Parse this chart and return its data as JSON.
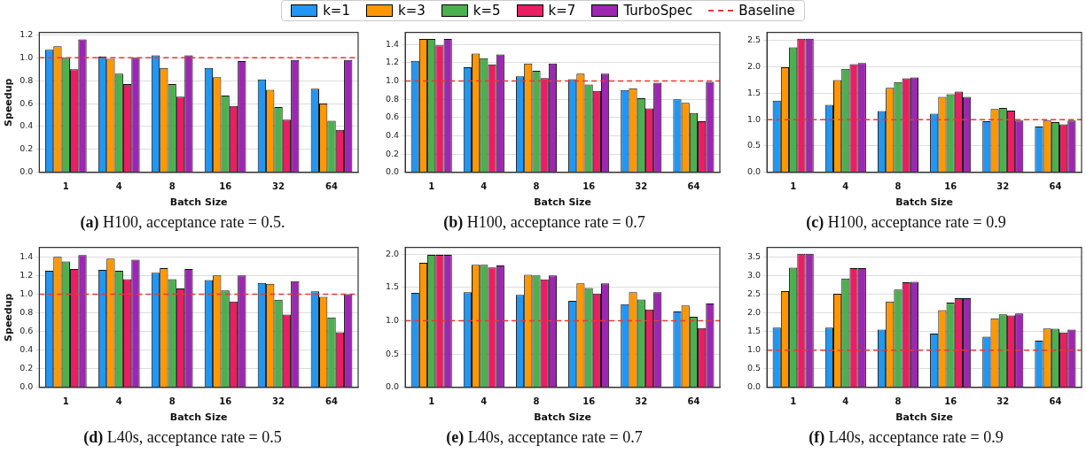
{
  "chart_data": [
    {
      "type": "bar",
      "title": "(a) H100, acceptance rate = 0.5.",
      "xlabel": "Batch Size",
      "ylabel": "Speedup",
      "categories": [
        "1",
        "4",
        "8",
        "16",
        "32",
        "64"
      ],
      "ylim": [
        0,
        1.22
      ],
      "yticks": [
        {
          "value": 0,
          "label": "0.0"
        },
        0.2,
        0.4,
        0.6,
        0.8,
        {
          "value": 1,
          "label": "1.0"
        },
        1.2
      ],
      "grid": "y",
      "legend": "top",
      "ref_lines": [
        {
          "axis": "y",
          "value": 1.0,
          "label": "Baseline",
          "color": "#e53935",
          "line_style": "dashed"
        }
      ],
      "series": [
        {
          "name": "k=1",
          "color": "#2196f3",
          "values": [
            1.07,
            1.01,
            1.02,
            0.91,
            0.81,
            0.73
          ]
        },
        {
          "name": "k=3",
          "color": "#ff9800",
          "values": [
            1.1,
            0.99,
            0.91,
            0.83,
            0.72,
            0.6
          ]
        },
        {
          "name": "k=5",
          "color": "#4caf50",
          "values": [
            1.0,
            0.86,
            0.77,
            0.67,
            0.57,
            0.45
          ]
        },
        {
          "name": "k=7",
          "color": "#e91e63",
          "values": [
            0.9,
            0.77,
            0.66,
            0.58,
            0.46,
            0.37
          ]
        },
        {
          "name": "TurboSpec",
          "color": "#9c27b0",
          "values": [
            1.16,
            1.0,
            1.02,
            0.97,
            0.98,
            0.98
          ]
        }
      ]
    },
    {
      "type": "bar",
      "title": "(b) H100, acceptance rate = 0.7",
      "xlabel": "Batch Size",
      "categories": [
        "1",
        "4",
        "8",
        "16",
        "32",
        "64"
      ],
      "ylim": [
        0,
        1.53
      ],
      "yticks": [
        {
          "value": 0,
          "label": "0.0"
        },
        0.2,
        0.4,
        0.6,
        0.8,
        {
          "value": 1,
          "label": "1.0"
        },
        1.2,
        1.4
      ],
      "grid": "y",
      "ref_lines": [
        {
          "axis": "y",
          "value": 1.0,
          "color": "#e53935",
          "line_style": "dashed"
        }
      ],
      "series": [
        {
          "color": "#2196f3",
          "values": [
            1.22,
            1.15,
            1.05,
            1.02,
            0.9,
            0.8
          ]
        },
        {
          "color": "#ff9800",
          "values": [
            1.46,
            1.3,
            1.19,
            1.08,
            0.92,
            0.76
          ]
        },
        {
          "color": "#4caf50",
          "values": [
            1.46,
            1.25,
            1.11,
            0.96,
            0.81,
            0.65
          ]
        },
        {
          "color": "#e91e63",
          "values": [
            1.39,
            1.18,
            1.03,
            0.89,
            0.7,
            0.56
          ]
        },
        {
          "color": "#9c27b0",
          "values": [
            1.46,
            1.29,
            1.19,
            1.08,
            0.98,
            0.99
          ]
        }
      ]
    },
    {
      "type": "bar",
      "title": "(c) H100, acceptance rate = 0.9",
      "xlabel": "Batch Size",
      "categories": [
        "1",
        "4",
        "8",
        "16",
        "32",
        "64"
      ],
      "ylim": [
        0,
        2.65
      ],
      "yticks": [
        {
          "value": 0,
          "label": "0.0"
        },
        0.5,
        {
          "value": 1,
          "label": "1.0"
        },
        1.5,
        {
          "value": 2,
          "label": "2.0"
        },
        2.5
      ],
      "grid": "y",
      "ref_lines": [
        {
          "axis": "y",
          "value": 1.0,
          "color": "#e53935",
          "line_style": "dashed"
        }
      ],
      "series": [
        {
          "color": "#2196f3",
          "values": [
            1.36,
            1.28,
            1.16,
            1.11,
            0.97,
            0.87
          ]
        },
        {
          "color": "#ff9800",
          "values": [
            1.99,
            1.75,
            1.6,
            1.43,
            1.2,
            0.98
          ]
        },
        {
          "color": "#4caf50",
          "values": [
            2.37,
            1.96,
            1.71,
            1.48,
            1.22,
            0.95
          ]
        },
        {
          "color": "#e91e63",
          "values": [
            2.53,
            2.05,
            1.78,
            1.53,
            1.17,
            0.91
          ]
        },
        {
          "color": "#9c27b0",
          "values": [
            2.53,
            2.07,
            1.8,
            1.43,
            0.98,
            0.98
          ]
        }
      ]
    },
    {
      "type": "bar",
      "title": "(d) L40s, acceptance rate = 0.5",
      "xlabel": "Batch Size",
      "ylabel": "Speedup",
      "categories": [
        "1",
        "4",
        "8",
        "16",
        "32",
        "64"
      ],
      "ylim": [
        0,
        1.5
      ],
      "yticks": [
        {
          "value": 0,
          "label": "0.0"
        },
        0.2,
        0.4,
        0.6,
        0.8,
        {
          "value": 1,
          "label": "1.0"
        },
        1.2,
        1.4
      ],
      "grid": "y",
      "ref_lines": [
        {
          "axis": "y",
          "value": 1.0,
          "color": "#e53935",
          "line_style": "dashed"
        }
      ],
      "series": [
        {
          "color": "#2196f3",
          "values": [
            1.25,
            1.26,
            1.23,
            1.15,
            1.12,
            1.03
          ]
        },
        {
          "color": "#ff9800",
          "values": [
            1.4,
            1.38,
            1.28,
            1.2,
            1.11,
            0.97
          ]
        },
        {
          "color": "#4caf50",
          "values": [
            1.35,
            1.25,
            1.16,
            1.04,
            0.94,
            0.75
          ]
        },
        {
          "color": "#e91e63",
          "values": [
            1.27,
            1.16,
            1.06,
            0.92,
            0.78,
            0.59
          ]
        },
        {
          "color": "#9c27b0",
          "values": [
            1.42,
            1.37,
            1.27,
            1.2,
            1.14,
            1.0
          ]
        }
      ]
    },
    {
      "type": "bar",
      "title": "(e) L40s, acceptance rate = 0.7",
      "xlabel": "Batch Size",
      "categories": [
        "1",
        "4",
        "8",
        "16",
        "32",
        "64"
      ],
      "ylim": [
        0,
        2.1
      ],
      "yticks": [
        {
          "value": 0,
          "label": "0.0"
        },
        0.5,
        {
          "value": 1,
          "label": "1.0"
        },
        1.5,
        {
          "value": 2,
          "label": "2.0"
        }
      ],
      "grid": "y",
      "ref_lines": [
        {
          "axis": "y",
          "value": 1.0,
          "color": "#e53935",
          "line_style": "dashed"
        }
      ],
      "series": [
        {
          "color": "#2196f3",
          "values": [
            1.42,
            1.43,
            1.39,
            1.3,
            1.25,
            1.14
          ]
        },
        {
          "color": "#ff9800",
          "values": [
            1.87,
            1.84,
            1.69,
            1.56,
            1.43,
            1.23
          ]
        },
        {
          "color": "#4caf50",
          "values": [
            1.99,
            1.84,
            1.68,
            1.49,
            1.32,
            1.06
          ]
        },
        {
          "color": "#e91e63",
          "values": [
            1.99,
            1.8,
            1.62,
            1.41,
            1.17,
            0.89
          ]
        },
        {
          "color": "#9c27b0",
          "values": [
            1.99,
            1.83,
            1.68,
            1.56,
            1.43,
            1.26
          ]
        }
      ]
    },
    {
      "type": "bar",
      "title": "(f) L40s, acceptance rate = 0.9",
      "xlabel": "Batch Size",
      "categories": [
        "1",
        "4",
        "8",
        "16",
        "32",
        "64"
      ],
      "ylim": [
        0,
        3.75
      ],
      "yticks": [
        {
          "value": 0,
          "label": "0.0"
        },
        0.5,
        {
          "value": 1,
          "label": "1.0"
        },
        1.5,
        {
          "value": 2,
          "label": "2.0"
        },
        2.5,
        {
          "value": 3,
          "label": "3.0"
        },
        3.5
      ],
      "grid": "y",
      "ref_lines": [
        {
          "axis": "y",
          "value": 1.0,
          "color": "#e53935",
          "line_style": "dashed"
        }
      ],
      "series": [
        {
          "color": "#2196f3",
          "values": [
            1.6,
            1.6,
            1.55,
            1.44,
            1.36,
            1.25
          ]
        },
        {
          "color": "#ff9800",
          "values": [
            2.58,
            2.51,
            2.3,
            2.07,
            1.85,
            1.58
          ]
        },
        {
          "color": "#4caf50",
          "values": [
            3.21,
            2.92,
            2.62,
            2.27,
            1.96,
            1.57
          ]
        },
        {
          "color": "#e91e63",
          "values": [
            3.58,
            3.2,
            2.82,
            2.39,
            1.93,
            1.47
          ]
        },
        {
          "color": "#9c27b0",
          "values": [
            3.58,
            3.2,
            2.83,
            2.39,
            1.98,
            1.55
          ]
        }
      ]
    }
  ]
}
